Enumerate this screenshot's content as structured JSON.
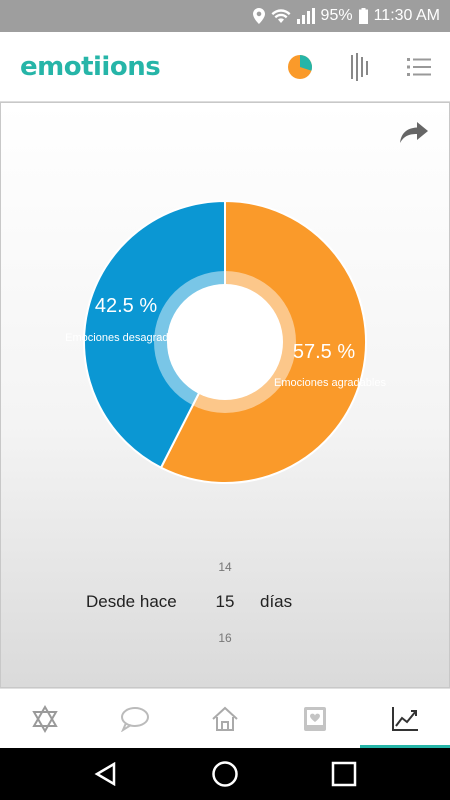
{
  "status_bar": {
    "battery": "95%",
    "time": "11:30 AM",
    "icons": [
      "location-icon",
      "wifi-icon",
      "signal-icon",
      "battery-icon"
    ]
  },
  "app": {
    "logo_text": "emotiions",
    "toolbar_icons": [
      "pie-chart-icon",
      "bars-chart-icon",
      "list-icon"
    ]
  },
  "chart_data": {
    "type": "pie",
    "slices": [
      {
        "label": "Emociones desagradables",
        "value": 42.5,
        "value_label": "42.5 %",
        "color": "#0b97d3"
      },
      {
        "label": "Emociones agradables",
        "value": 57.5,
        "value_label": "57.5 %",
        "color": "#fa9a2a"
      }
    ]
  },
  "picker": {
    "prev": "14",
    "value": "15",
    "next": "16",
    "label_before": "Desde hace",
    "label_after": "días"
  },
  "bottom_nav": {
    "tabs": [
      "star-of-david-icon",
      "chat-bubble-icon",
      "home-icon",
      "photo-heart-icon",
      "trend-chart-icon"
    ],
    "active": 4
  },
  "system_nav": [
    "back-icon",
    "home-circle-icon",
    "recents-icon"
  ],
  "colors": {
    "accent": "#26b5a8",
    "orange": "#fa9a2a",
    "blue": "#0b97d3"
  }
}
